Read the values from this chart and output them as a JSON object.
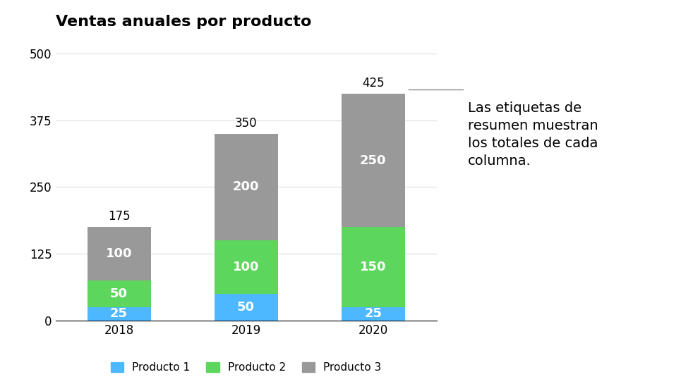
{
  "title": "Ventas anuales por producto",
  "years": [
    "2018",
    "2019",
    "2020"
  ],
  "producto1": [
    25,
    50,
    25
  ],
  "producto2": [
    50,
    100,
    150
  ],
  "producto3": [
    100,
    200,
    250
  ],
  "totals": [
    175,
    350,
    425
  ],
  "color_p1": "#4db8ff",
  "color_p2": "#5cd65c",
  "color_p3": "#999999",
  "legend_labels": [
    "Producto 1",
    "Producto 2",
    "Producto 3"
  ],
  "ylabel_ticks": [
    0,
    125,
    250,
    375,
    500
  ],
  "bar_width": 0.5,
  "annotation_text": "Las etiquetas de\nresumen muestran\nlos totales de cada\ncolumna.",
  "annotation_fontsize": 14,
  "background_color": "#ffffff",
  "grid_color": "#dddddd",
  "label_fontsize": 13,
  "tick_fontsize": 12,
  "title_fontsize": 16
}
